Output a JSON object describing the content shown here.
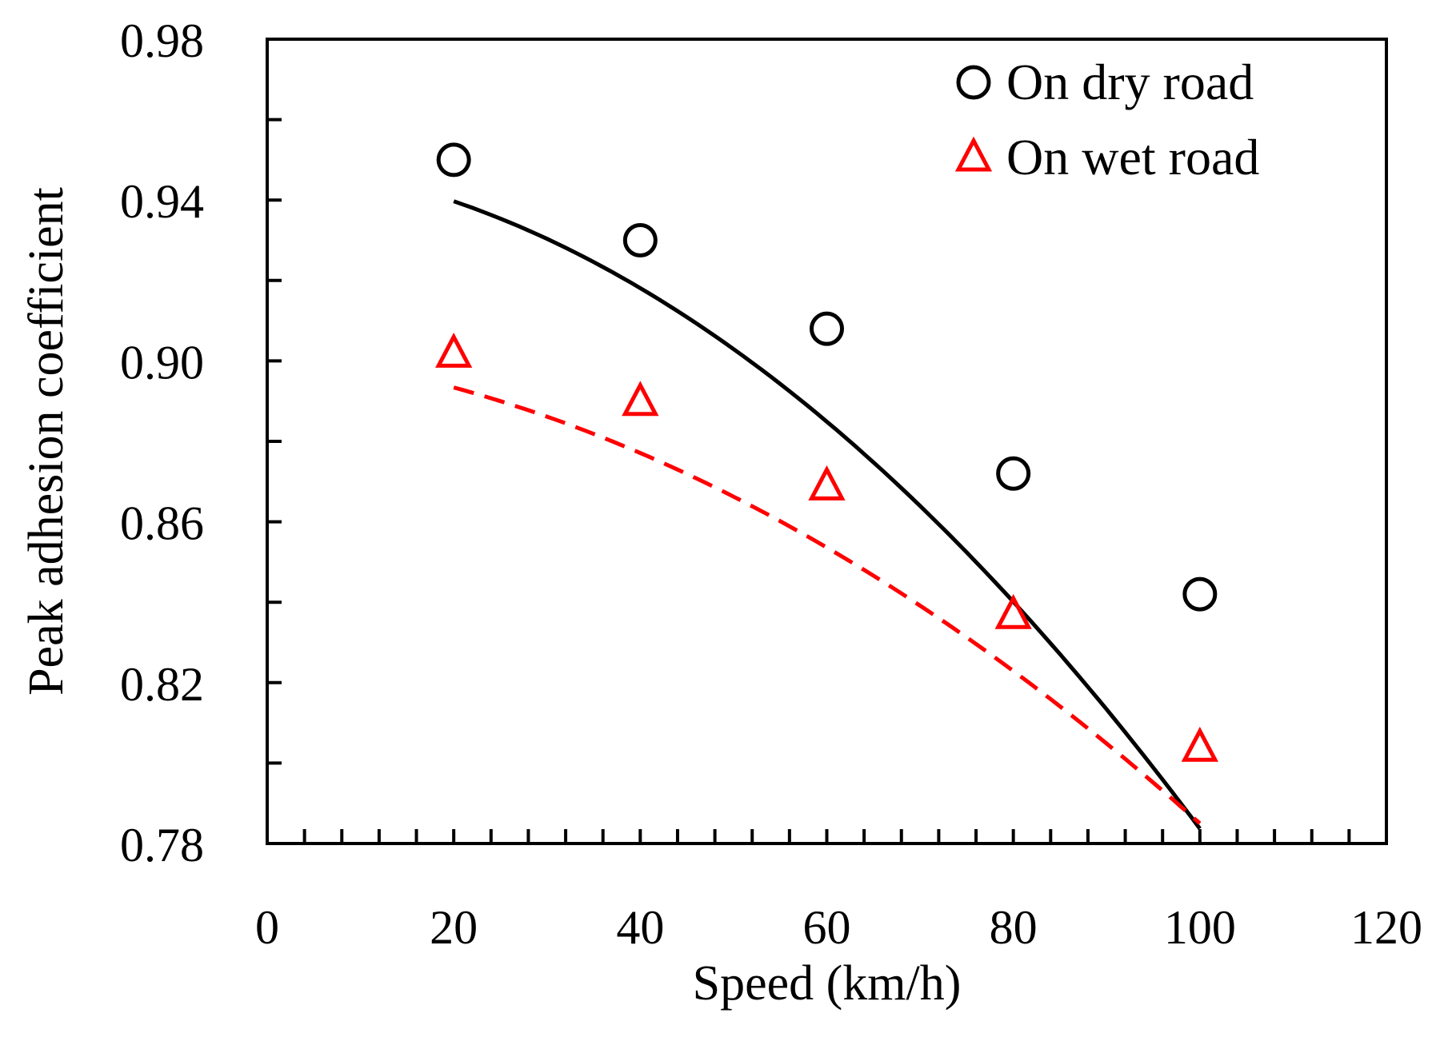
{
  "chart_data": {
    "type": "line",
    "xlabel": "Speed (km/h)",
    "ylabel": "Peak adhesion coefficient",
    "xlim": [
      0,
      120
    ],
    "ylim": [
      0.78,
      0.98
    ],
    "x_ticks": [
      "0",
      "20",
      "40",
      "60",
      "80",
      "100",
      "120"
    ],
    "y_ticks": [
      "0.78",
      "0.82",
      "0.86",
      "0.90",
      "0.94",
      "0.98"
    ],
    "x_minor_step": 4,
    "y_minor_step": 0.02,
    "grid": false,
    "legend_position": "top-right",
    "series": [
      {
        "name": "On dry road",
        "marker": "circle",
        "color": "#000000",
        "line_style": "solid",
        "x": [
          20,
          40,
          60,
          80,
          100
        ],
        "y": [
          0.95,
          0.93,
          0.908,
          0.872,
          0.842
        ],
        "fit": [
          0.9497,
          -0.00021,
          -1.45e-05
        ]
      },
      {
        "name": "On wet road",
        "marker": "triangle",
        "color": "#ff0000",
        "line_style": "dashed",
        "x": [
          20,
          40,
          60,
          80,
          100
        ],
        "y": [
          0.902,
          0.89,
          0.869,
          0.837,
          0.804
        ],
        "fit": [
          0.9025,
          -0.000275,
          -9e-06
        ]
      }
    ]
  }
}
